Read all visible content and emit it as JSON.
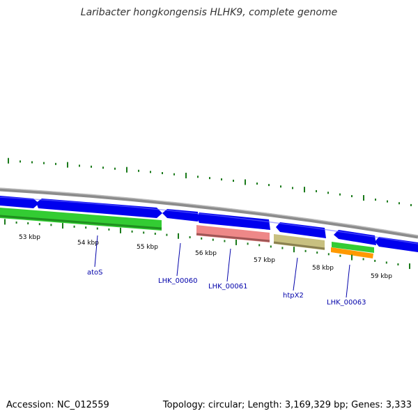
{
  "title": "Laribacter hongkongensis HLHK9, complete genome",
  "footer": {
    "accession": "Accession: NC_012559",
    "summary": "Topology: circular; Length: 3,169,329 bp; Genes: 3,333"
  },
  "colors": {
    "backbone": "#8c8c8c",
    "cds_forward": "#0000ee",
    "cds_forward_light": "#6b6bff",
    "gc_ticks": "#1a7a1a",
    "label_text": "#0000aa",
    "tick_color": "#1a7a1a"
  },
  "scale_labels": [
    "53 kbp",
    "54 kbp",
    "55 kbp",
    "56 kbp",
    "57 kbp",
    "58 kbp",
    "59 kbp"
  ],
  "features": [
    {
      "name": "atoS",
      "color": "#33cc33",
      "track": "reverse"
    },
    {
      "name": "LHK_00060",
      "color": "#0000ee",
      "track": "forward"
    },
    {
      "name": "LHK_00061",
      "color": "#ee8888",
      "track": "reverse"
    },
    {
      "name": "htpX2",
      "color": "#c8c080",
      "track": "reverse"
    },
    {
      "name": "LHK_00063",
      "color": "#33cc33",
      "track": "reverse"
    }
  ],
  "extra_feature_color": "#ff9900"
}
